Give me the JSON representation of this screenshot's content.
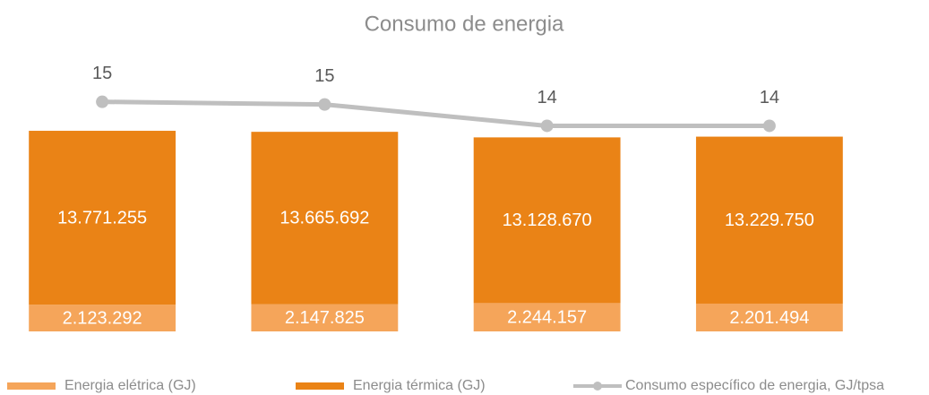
{
  "chart_data": {
    "type": "bar",
    "title": "Consumo de energia",
    "categories": [
      null,
      null,
      null,
      null
    ],
    "stacked": true,
    "ylim": [
      0,
      22000000
    ],
    "y2lim": [
      6.4,
      16.8
    ],
    "series": [
      {
        "name": "Energia elétrica (GJ)",
        "color": "#f5a55a",
        "values": [
          2123292,
          2147825,
          2244157,
          2201494
        ],
        "value_labels": [
          "2.123.292",
          "2.147.825",
          "2.244.157",
          "2.201.494"
        ]
      },
      {
        "name": "Energia térmica (GJ)",
        "color": "#ea8316",
        "values": [
          13771255,
          13665692,
          13128670,
          13229750
        ],
        "value_labels": [
          "13.771.255",
          "13.665.692",
          "13.128.670",
          "13.229.750"
        ]
      },
      {
        "name": "Consumo específico de energia, GJ/tpsa",
        "type": "line",
        "axis": "y2",
        "color": "#bfbfbf",
        "values": [
          15.0,
          14.9,
          14.1,
          14.1
        ],
        "value_labels": [
          "15",
          "15",
          "14",
          "14"
        ]
      }
    ],
    "legend": "bottom"
  }
}
